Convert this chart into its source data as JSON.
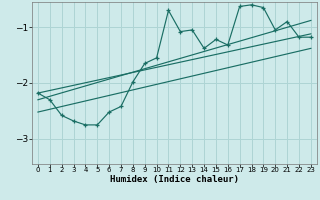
{
  "xlabel": "Humidex (Indice chaleur)",
  "bg_color": "#ceeaea",
  "line_color": "#1a6e64",
  "grid_color": "#aed4d4",
  "xlim": [
    -0.5,
    23.5
  ],
  "ylim": [
    -3.45,
    -0.55
  ],
  "xticks": [
    0,
    1,
    2,
    3,
    4,
    5,
    6,
    7,
    8,
    9,
    10,
    11,
    12,
    13,
    14,
    15,
    16,
    17,
    18,
    19,
    20,
    21,
    22,
    23
  ],
  "yticks": [
    -3,
    -2,
    -1
  ],
  "main_x": [
    0,
    1,
    2,
    3,
    4,
    5,
    6,
    7,
    8,
    9,
    10,
    11,
    12,
    13,
    14,
    15,
    16,
    17,
    18,
    19,
    20,
    21,
    22,
    23
  ],
  "main_y": [
    -2.18,
    -2.3,
    -2.58,
    -2.68,
    -2.75,
    -2.75,
    -2.52,
    -2.42,
    -1.98,
    -1.65,
    -1.55,
    -0.7,
    -1.08,
    -1.05,
    -1.38,
    -1.22,
    -1.32,
    -0.63,
    -0.6,
    -0.65,
    -1.05,
    -0.9,
    -1.18,
    -1.18
  ],
  "line1_x": [
    0,
    23
  ],
  "line1_y": [
    -2.18,
    -1.12
  ],
  "line2_x": [
    0,
    23
  ],
  "line2_y": [
    -2.3,
    -0.88
  ],
  "line3_x": [
    0,
    23
  ],
  "line3_y": [
    -2.52,
    -1.38
  ]
}
